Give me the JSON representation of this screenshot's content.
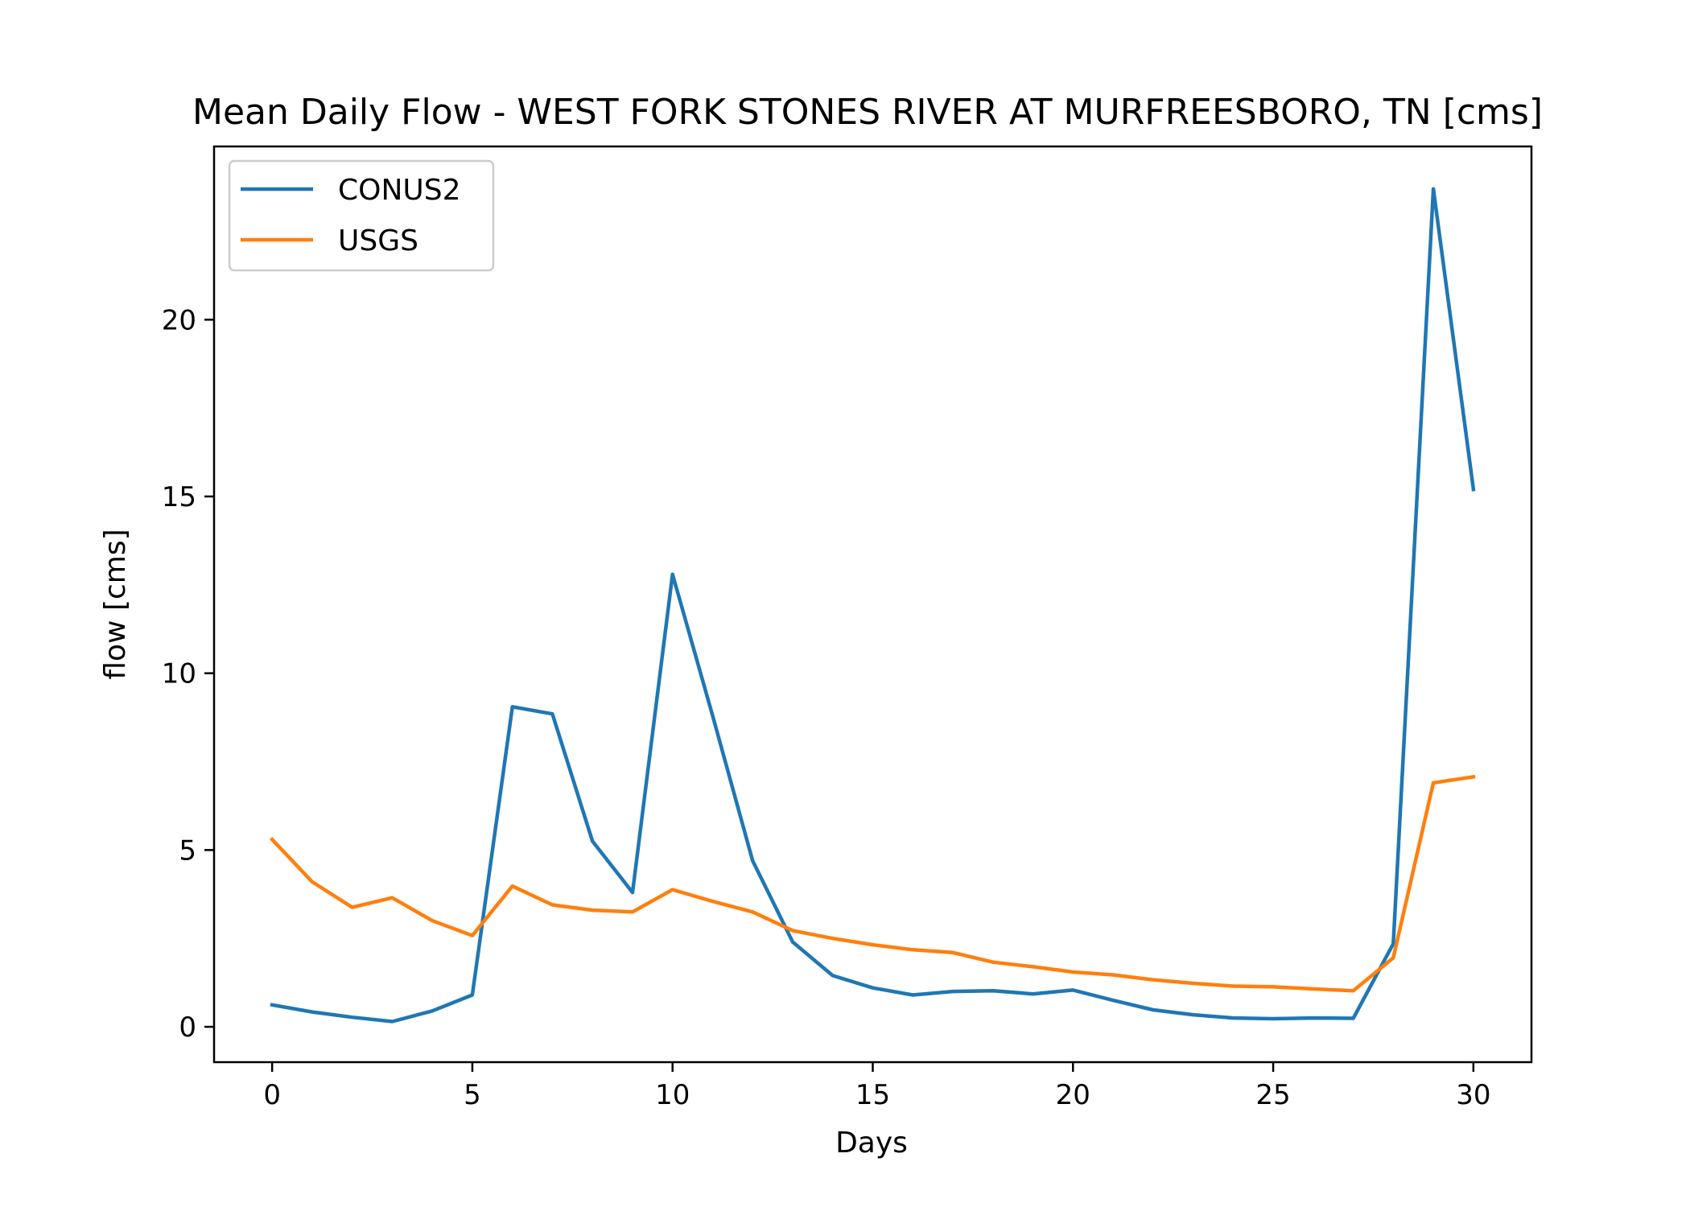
{
  "chart_data": {
    "type": "line",
    "title": "Mean Daily Flow - WEST FORK STONES RIVER AT MURFREESBORO, TN [cms]",
    "xlabel": "Days",
    "ylabel": "flow [cms]",
    "xlim": [
      -1.45,
      31.45
    ],
    "ylim": [
      -1.0,
      24.9
    ],
    "xticks": [
      0,
      5,
      10,
      15,
      20,
      25,
      30
    ],
    "yticks": [
      0,
      5,
      10,
      15,
      20
    ],
    "grid": false,
    "legend_position": "top-left",
    "x": [
      0,
      1,
      2,
      3,
      4,
      5,
      6,
      7,
      8,
      9,
      10,
      11,
      12,
      13,
      14,
      15,
      16,
      17,
      18,
      19,
      20,
      21,
      22,
      23,
      24,
      25,
      26,
      27,
      28,
      29,
      30
    ],
    "series": [
      {
        "name": "CONUS2",
        "color": "#1f77b4",
        "values": [
          0.62,
          0.42,
          0.27,
          0.15,
          0.45,
          0.9,
          9.05,
          8.85,
          5.25,
          3.8,
          12.8,
          8.8,
          4.7,
          2.4,
          1.45,
          1.1,
          0.9,
          1.0,
          1.02,
          0.93,
          1.04,
          0.75,
          0.48,
          0.34,
          0.25,
          0.23,
          0.25,
          0.24,
          2.35,
          23.7,
          15.2
        ]
      },
      {
        "name": "USGS",
        "color": "#ff7f0e",
        "values": [
          5.3,
          4.1,
          3.38,
          3.65,
          3.0,
          2.58,
          3.98,
          3.45,
          3.3,
          3.25,
          3.88,
          3.55,
          3.25,
          2.72,
          2.5,
          2.32,
          2.18,
          2.1,
          1.83,
          1.7,
          1.55,
          1.47,
          1.33,
          1.23,
          1.15,
          1.13,
          1.07,
          1.02,
          1.95,
          6.9,
          7.07
        ]
      }
    ]
  }
}
